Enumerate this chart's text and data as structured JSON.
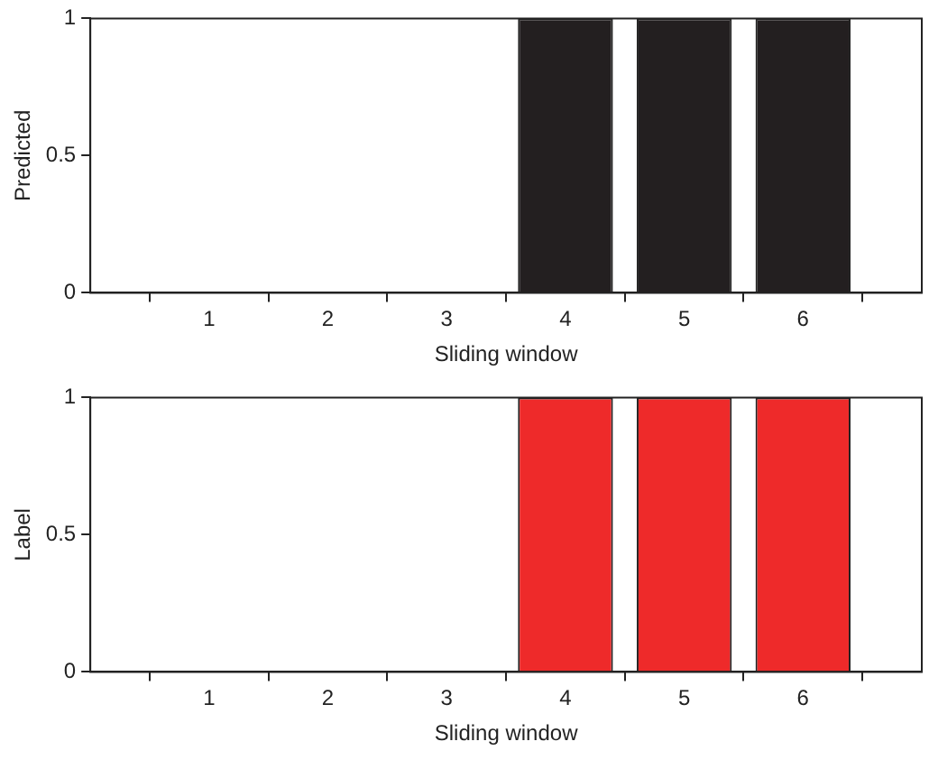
{
  "chart_data": [
    {
      "type": "bar",
      "ylabel": "Predicted",
      "xlabel": "Sliding window",
      "x": [
        1,
        2,
        3,
        4,
        5,
        6
      ],
      "values": [
        0,
        0,
        0,
        1,
        1,
        1
      ],
      "color": "#231f20",
      "xlim": [
        0,
        7
      ],
      "xticks": [
        1,
        2,
        3,
        4,
        5,
        6
      ],
      "ylim": [
        0,
        1
      ],
      "yticks": [
        0,
        0.5,
        1
      ],
      "grid": false,
      "legend": false
    },
    {
      "type": "bar",
      "ylabel": "Label",
      "xlabel": "Sliding window",
      "x": [
        1,
        2,
        3,
        4,
        5,
        6
      ],
      "values": [
        0,
        0,
        0,
        1,
        1,
        1
      ],
      "color": "#ee2a2a",
      "xlim": [
        0,
        7
      ],
      "xticks": [
        1,
        2,
        3,
        4,
        5,
        6
      ],
      "ylim": [
        0,
        1
      ],
      "yticks": [
        0,
        0.5,
        1
      ],
      "grid": false,
      "legend": false
    }
  ]
}
